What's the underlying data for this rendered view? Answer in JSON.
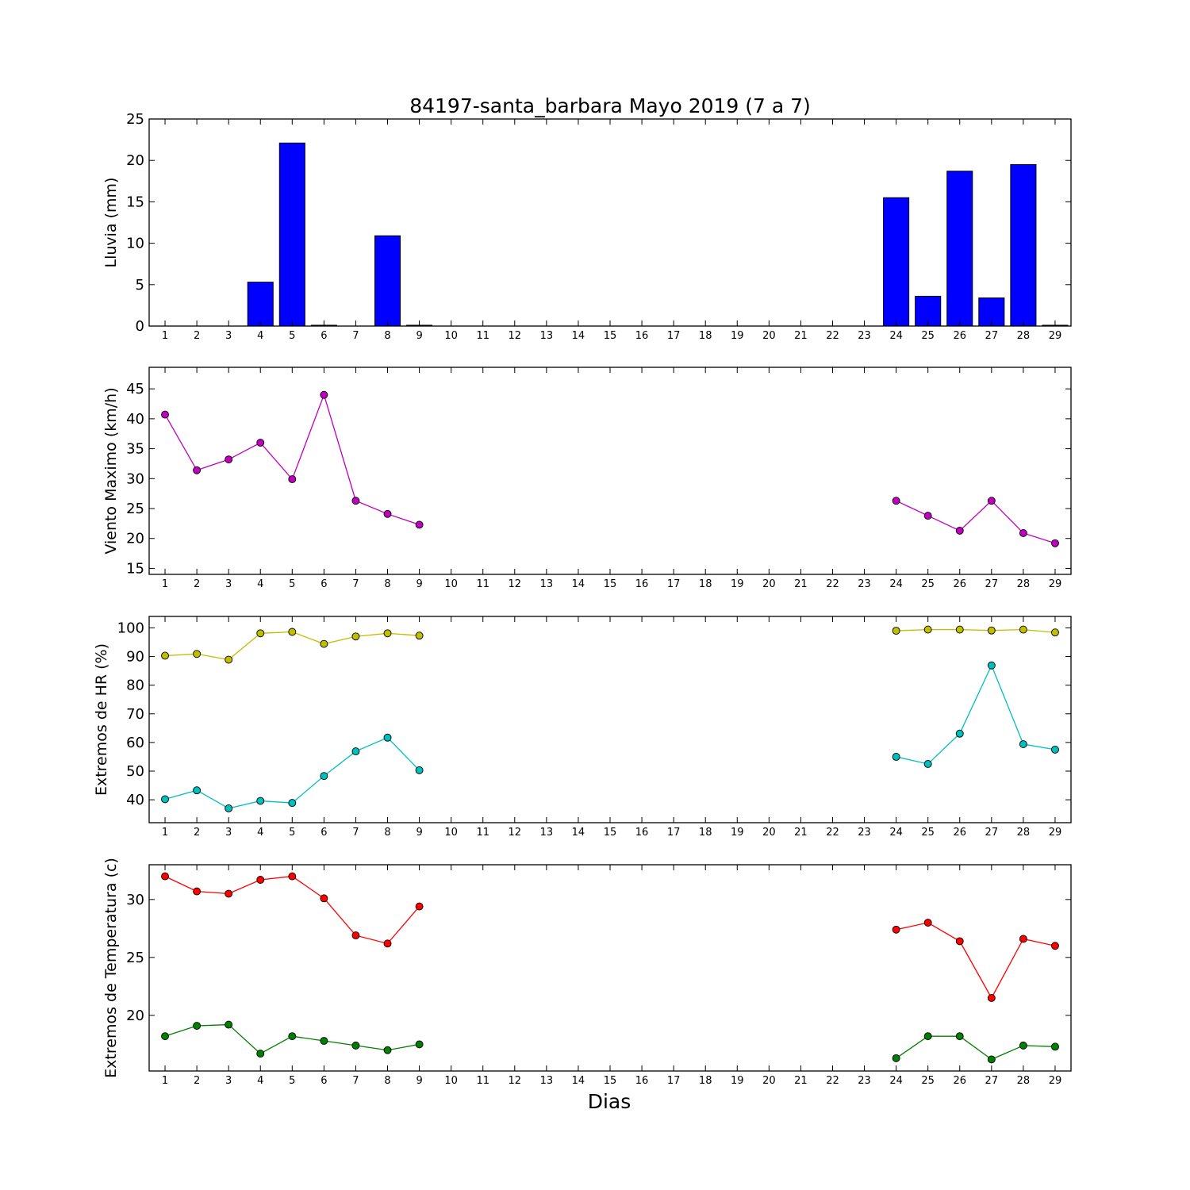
{
  "chart_data": [
    {
      "type": "bar",
      "title": "84197-santa_barbara Mayo 2019  (7 a 7)",
      "ylabel": "Lluvia (mm)",
      "xlabel": "",
      "ylim": [
        0,
        25
      ],
      "yticks": [
        0,
        5,
        10,
        15,
        20,
        25
      ],
      "x": [
        1,
        2,
        3,
        4,
        5,
        6,
        7,
        8,
        9,
        10,
        11,
        12,
        13,
        14,
        15,
        16,
        17,
        18,
        19,
        20,
        21,
        22,
        23,
        24,
        25,
        26,
        27,
        28,
        29
      ],
      "series": [
        {
          "color": "#0000ff",
          "values": [
            0,
            0,
            0,
            5.3,
            22.1,
            0.1,
            0,
            10.9,
            0.1,
            0,
            0,
            0,
            0,
            0,
            0,
            0,
            0,
            0,
            0,
            0,
            0,
            0,
            0,
            15.5,
            3.6,
            18.7,
            3.4,
            19.5,
            0.1
          ]
        }
      ]
    },
    {
      "type": "line",
      "ylabel": "Viento Maximo (km/h)",
      "xlabel": "",
      "ylim": [
        14,
        48.6
      ],
      "yticks": [
        15,
        20,
        25,
        30,
        35,
        40,
        45
      ],
      "x": [
        1,
        2,
        3,
        4,
        5,
        6,
        7,
        8,
        9,
        10,
        11,
        12,
        13,
        14,
        15,
        16,
        17,
        18,
        19,
        20,
        21,
        22,
        23,
        24,
        25,
        26,
        27,
        28,
        29
      ],
      "series": [
        {
          "color": "#bf00bf",
          "values": [
            40.7,
            31.4,
            33.2,
            36.0,
            29.9,
            44.0,
            26.3,
            24.1,
            22.3,
            null,
            null,
            null,
            null,
            null,
            null,
            null,
            null,
            null,
            null,
            null,
            null,
            null,
            null,
            26.3,
            23.8,
            21.3,
            26.3,
            20.9,
            19.2
          ]
        }
      ]
    },
    {
      "type": "line",
      "ylabel": "Extremos de HR (%)",
      "xlabel": "",
      "ylim": [
        32,
        104
      ],
      "yticks": [
        40,
        50,
        60,
        70,
        80,
        90,
        100
      ],
      "x": [
        1,
        2,
        3,
        4,
        5,
        6,
        7,
        8,
        9,
        10,
        11,
        12,
        13,
        14,
        15,
        16,
        17,
        18,
        19,
        20,
        21,
        22,
        23,
        24,
        25,
        26,
        27,
        28,
        29
      ],
      "series": [
        {
          "color": "#bfbf00",
          "values": [
            90.3,
            90.9,
            88.9,
            98.1,
            98.6,
            94.4,
            97.0,
            98.1,
            97.3,
            null,
            null,
            null,
            null,
            null,
            null,
            null,
            null,
            null,
            null,
            null,
            null,
            null,
            null,
            99.0,
            99.4,
            99.4,
            99.1,
            99.4,
            98.4
          ]
        },
        {
          "color": "#00bfbf",
          "values": [
            40.2,
            43.3,
            37.0,
            39.6,
            38.9,
            48.3,
            56.9,
            61.7,
            50.3,
            null,
            null,
            null,
            null,
            null,
            null,
            null,
            null,
            null,
            null,
            null,
            null,
            null,
            null,
            55.0,
            52.5,
            63.1,
            86.9,
            59.4,
            57.5
          ]
        }
      ]
    },
    {
      "type": "line",
      "ylabel": "Extremos de Temperatura (c)",
      "xlabel": "Dias",
      "ylim": [
        15.2,
        33.0
      ],
      "yticks": [
        20,
        25,
        30
      ],
      "x": [
        1,
        2,
        3,
        4,
        5,
        6,
        7,
        8,
        9,
        10,
        11,
        12,
        13,
        14,
        15,
        16,
        17,
        18,
        19,
        20,
        21,
        22,
        23,
        24,
        25,
        26,
        27,
        28,
        29
      ],
      "series": [
        {
          "color": "#ff0000",
          "values": [
            32.0,
            30.7,
            30.5,
            31.7,
            32.0,
            30.1,
            26.9,
            26.2,
            29.4,
            null,
            null,
            null,
            null,
            null,
            null,
            null,
            null,
            null,
            null,
            null,
            null,
            null,
            null,
            27.4,
            28.0,
            26.4,
            21.5,
            26.6,
            26.0
          ]
        },
        {
          "color": "#008000",
          "values": [
            18.2,
            19.1,
            19.2,
            16.7,
            18.2,
            17.8,
            17.4,
            17.0,
            17.5,
            null,
            null,
            null,
            null,
            null,
            null,
            null,
            null,
            null,
            null,
            null,
            null,
            null,
            null,
            16.3,
            18.2,
            18.2,
            16.2,
            17.4,
            17.3
          ]
        }
      ]
    }
  ]
}
